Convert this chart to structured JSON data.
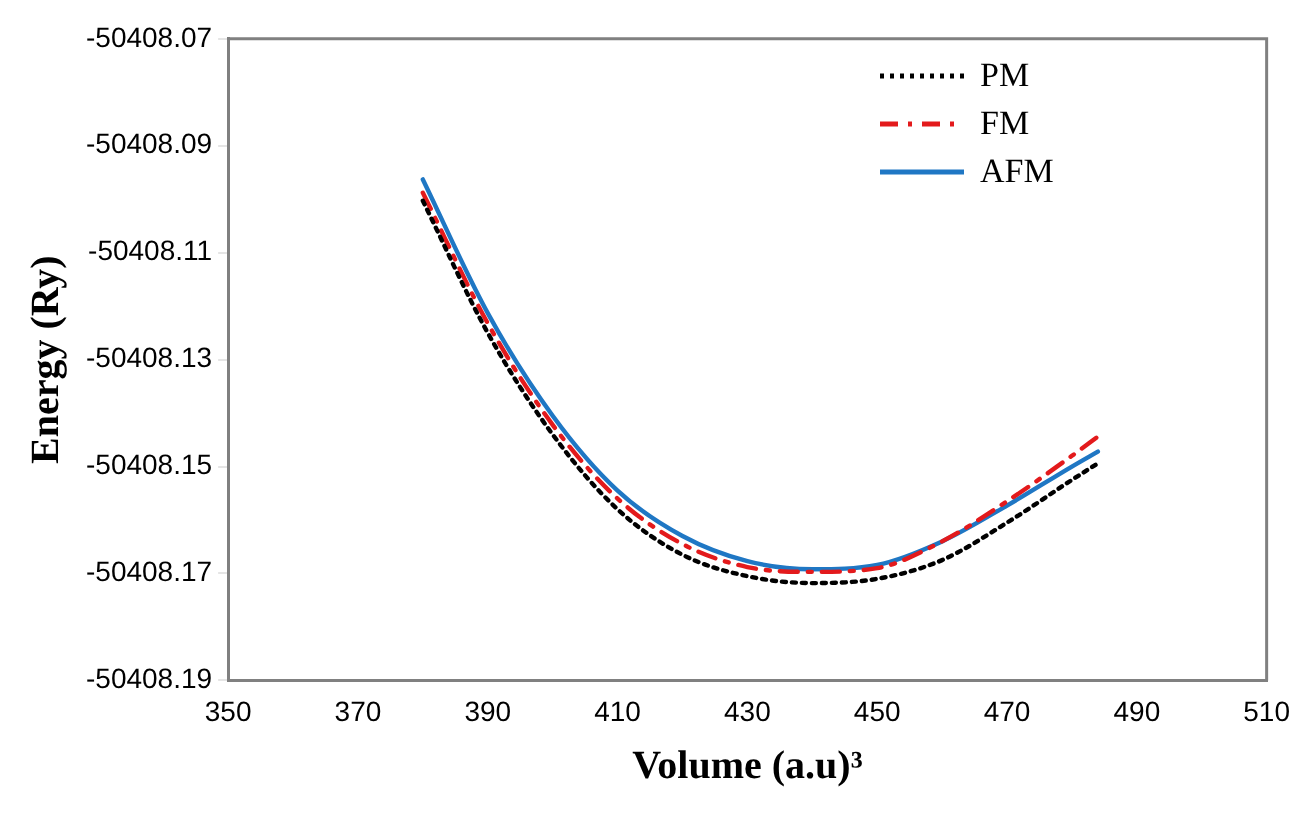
{
  "chart_data": {
    "type": "line",
    "xlabel": "Volume (a.u)³",
    "ylabel": "Energy (Ry)",
    "xlim": [
      350,
      510
    ],
    "xticks": [
      350,
      370,
      390,
      410,
      430,
      450,
      470,
      490,
      510
    ],
    "ylim": [
      -50408.19,
      -50408.07
    ],
    "yticks": [
      -50408.19,
      -50408.17,
      -50408.15,
      -50408.13,
      -50408.11,
      -50408.09,
      -50408.07
    ],
    "grid": false,
    "legend": "top right",
    "marker": "none",
    "x": [
      380,
      390,
      400,
      410,
      420,
      430,
      440,
      450,
      460,
      470,
      480,
      484
    ],
    "series": [
      {
        "name": "PM",
        "color": "#000000",
        "line_style": "dotted",
        "values": [
          -50408.1003,
          -50408.125,
          -50408.144,
          -50408.158,
          -50408.1665,
          -50408.1705,
          -50408.1718,
          -50408.171,
          -50408.1675,
          -50408.1605,
          -50408.1525,
          -50408.1494
        ]
      },
      {
        "name": "FM",
        "color": "#e31a1c",
        "line_style": "dashdot",
        "values": [
          -50408.0988,
          -50408.1232,
          -50408.1422,
          -50408.156,
          -50408.1645,
          -50408.1688,
          -50408.1697,
          -50408.169,
          -50408.164,
          -50408.1565,
          -50408.148,
          -50408.1444
        ]
      },
      {
        "name": "AFM",
        "color": "#1f77c4",
        "line_style": "solid",
        "values": [
          -50408.0963,
          -50408.1213,
          -50408.1405,
          -50408.1545,
          -50408.163,
          -50408.1677,
          -50408.1692,
          -50408.1684,
          -50408.164,
          -50408.1573,
          -50408.15,
          -50408.1472
        ]
      }
    ]
  }
}
